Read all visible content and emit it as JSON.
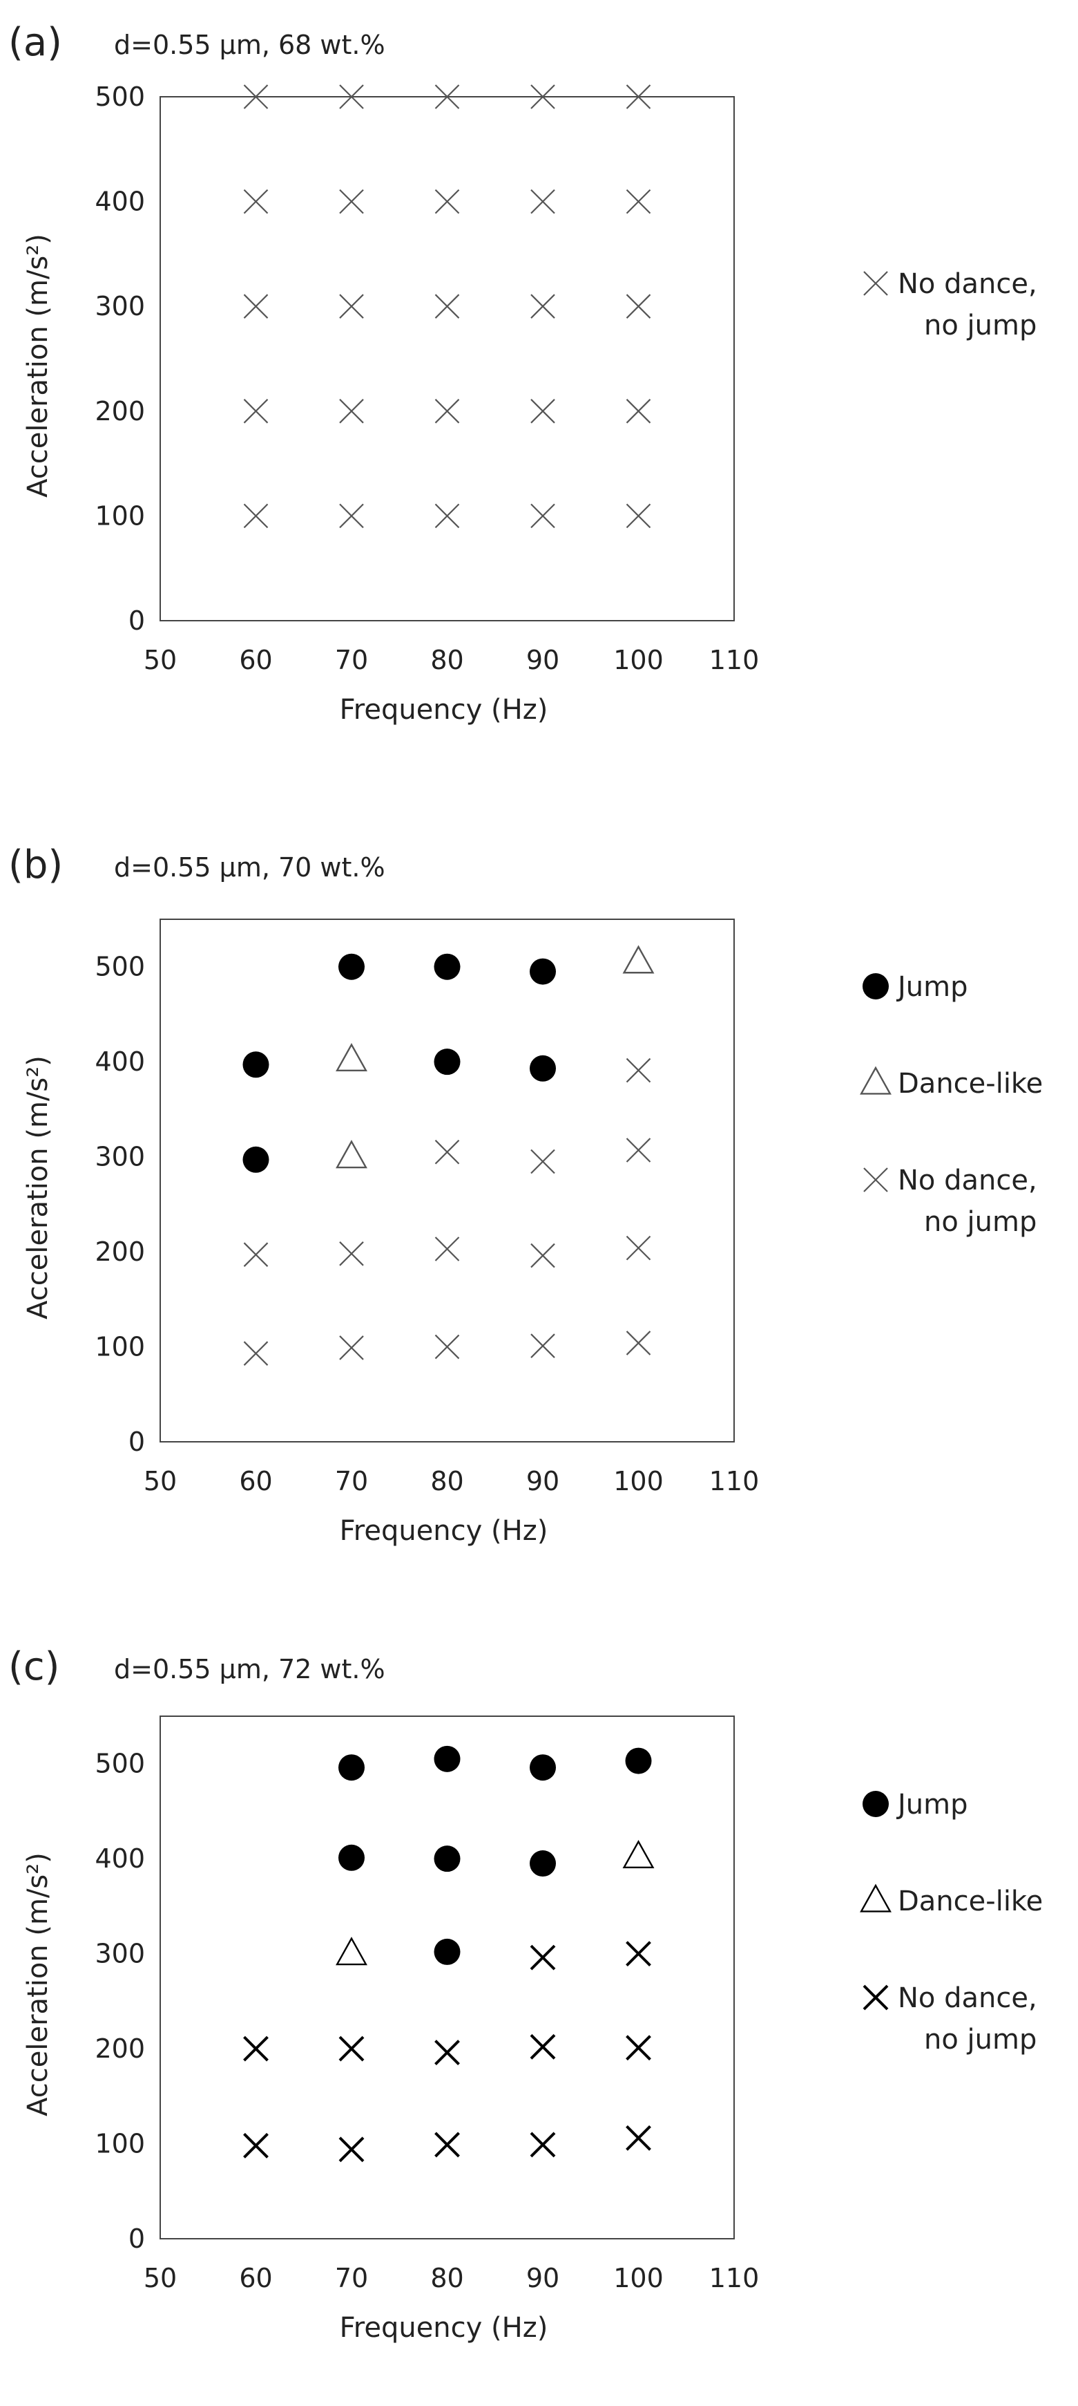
{
  "chart_data": [
    {
      "type": "scatter",
      "panel_label": "(a)",
      "title": "d=0.55 μm, 68 wt.%",
      "xlabel": "Frequency (Hz)",
      "ylabel": "Acceleration (m/s²)",
      "xlim": [
        50,
        110
      ],
      "ylim": [
        0,
        500
      ],
      "xticks": [
        50,
        60,
        70,
        80,
        90,
        100,
        110
      ],
      "yticks": [
        0,
        100,
        200,
        300,
        400,
        500
      ],
      "grid": false,
      "legend_position": "right",
      "legend": [
        {
          "marker": "cross",
          "label_lines": [
            "No dance,",
            "no jump"
          ]
        }
      ],
      "series": [
        {
          "name": "No dance, no jump",
          "marker": "cross",
          "color": "#555555",
          "points": [
            [
              60,
              100
            ],
            [
              60,
              200
            ],
            [
              60,
              300
            ],
            [
              60,
              400
            ],
            [
              60,
              500
            ],
            [
              70,
              100
            ],
            [
              70,
              200
            ],
            [
              70,
              300
            ],
            [
              70,
              400
            ],
            [
              70,
              500
            ],
            [
              80,
              100
            ],
            [
              80,
              200
            ],
            [
              80,
              300
            ],
            [
              80,
              400
            ],
            [
              80,
              500
            ],
            [
              90,
              100
            ],
            [
              90,
              200
            ],
            [
              90,
              300
            ],
            [
              90,
              400
            ],
            [
              90,
              500
            ],
            [
              100,
              100
            ],
            [
              100,
              200
            ],
            [
              100,
              300
            ],
            [
              100,
              400
            ],
            [
              100,
              500
            ]
          ]
        }
      ]
    },
    {
      "type": "scatter",
      "panel_label": "(b)",
      "title": "d=0.55 μm, 70 wt.%",
      "xlabel": "Frequency (Hz)",
      "ylabel": "Acceleration (m/s²)",
      "xlim": [
        50,
        110
      ],
      "ylim": [
        0,
        550
      ],
      "xticks": [
        50,
        60,
        70,
        80,
        90,
        100,
        110
      ],
      "yticks": [
        0,
        100,
        200,
        300,
        400,
        500
      ],
      "grid": false,
      "legend_position": "right",
      "legend": [
        {
          "marker": "circle",
          "label_lines": [
            "Jump"
          ]
        },
        {
          "marker": "triangle",
          "label_lines": [
            "Dance-like"
          ]
        },
        {
          "marker": "cross",
          "label_lines": [
            "No dance,",
            "no jump"
          ]
        }
      ],
      "series": [
        {
          "name": "Jump",
          "marker": "circle",
          "color": "#000000",
          "points": [
            [
              60,
              297
            ],
            [
              60,
              397
            ],
            [
              70,
              500
            ],
            [
              80,
              400
            ],
            [
              80,
              500
            ],
            [
              90,
              393
            ],
            [
              90,
              495
            ]
          ]
        },
        {
          "name": "Dance-like",
          "marker": "triangle",
          "color": "#555555",
          "points": [
            [
              70,
              300
            ],
            [
              70,
              402
            ],
            [
              100,
              505
            ]
          ]
        },
        {
          "name": "No dance, no jump",
          "marker": "cross",
          "color": "#555555",
          "points": [
            [
              60,
              93
            ],
            [
              60,
              197
            ],
            [
              70,
              99
            ],
            [
              70,
              198
            ],
            [
              80,
              100
            ],
            [
              80,
              203
            ],
            [
              80,
              305
            ],
            [
              90,
              101
            ],
            [
              90,
              196
            ],
            [
              90,
              295
            ],
            [
              100,
              104
            ],
            [
              100,
              204
            ],
            [
              100,
              307
            ],
            [
              100,
              391
            ]
          ]
        }
      ]
    },
    {
      "type": "scatter",
      "panel_label": "(c)",
      "title": "d=0.55 μm, 72 wt.%",
      "xlabel": "Frequency (Hz)",
      "ylabel": "Acceleration (m/s²)",
      "xlim": [
        50,
        110
      ],
      "ylim": [
        0,
        550
      ],
      "xticks": [
        50,
        60,
        70,
        80,
        90,
        100,
        110
      ],
      "yticks": [
        0,
        100,
        200,
        300,
        400,
        500
      ],
      "grid": false,
      "legend_position": "right",
      "legend": [
        {
          "marker": "circle",
          "label_lines": [
            "Jump"
          ]
        },
        {
          "marker": "triangle",
          "label_lines": [
            "Dance-like"
          ]
        },
        {
          "marker": "cross",
          "label_lines": [
            "No dance,",
            "no jump"
          ]
        }
      ],
      "series": [
        {
          "name": "Jump",
          "marker": "circle",
          "color": "#000000",
          "points": [
            [
              70,
              496
            ],
            [
              70,
              401
            ],
            [
              80,
              505
            ],
            [
              80,
              400
            ],
            [
              80,
              302
            ],
            [
              90,
              496
            ],
            [
              90,
              395
            ],
            [
              100,
              503
            ]
          ]
        },
        {
          "name": "Dance-like",
          "marker": "triangle",
          "color": "#000000",
          "points": [
            [
              70,
              300
            ],
            [
              100,
              402
            ]
          ]
        },
        {
          "name": "No dance, no jump",
          "marker": "cross",
          "color": "#000000",
          "points": [
            [
              60,
              200
            ],
            [
              60,
              98
            ],
            [
              70,
              200
            ],
            [
              70,
              94
            ],
            [
              80,
              196
            ],
            [
              80,
              99
            ],
            [
              90,
              296
            ],
            [
              90,
              202
            ],
            [
              90,
              99
            ],
            [
              100,
              300
            ],
            [
              100,
              201
            ],
            [
              100,
              106
            ]
          ]
        }
      ]
    }
  ]
}
